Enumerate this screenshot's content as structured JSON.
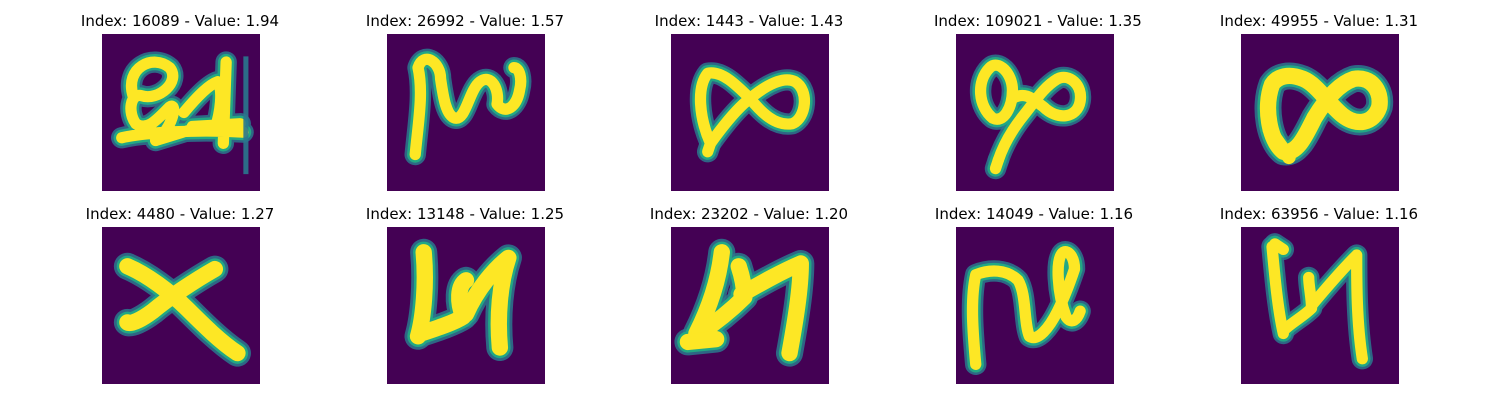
{
  "colors": {
    "background": "#440154",
    "edge": "#22a884",
    "halo": "#2a788e",
    "stroke": "#fde725",
    "figure": "#ffffff",
    "text": "#000000"
  },
  "panels": [
    {
      "index": "16089",
      "value": "1.94",
      "title": "Index: 16089 - Value: 1.94",
      "glyph": "scribble-24"
    },
    {
      "index": "26992",
      "value": "1.57",
      "title": "Index: 26992 - Value: 1.57",
      "glyph": "wave-n"
    },
    {
      "index": "1443",
      "value": "1.43",
      "title": "Index: 1443 - Value: 1.43",
      "glyph": "bowtie-infinity"
    },
    {
      "index": "109021",
      "value": "1.35",
      "title": "Index: 109021 - Value: 1.35",
      "glyph": "loop-infinity-tail"
    },
    {
      "index": "49955",
      "value": "1.31",
      "title": "Index: 49955 - Value: 1.31",
      "glyph": "bold-infinity"
    },
    {
      "index": "4480",
      "value": "1.27",
      "title": "Index: 4480 - Value: 1.27",
      "glyph": "letter-x"
    },
    {
      "index": "13148",
      "value": "1.25",
      "title": "Index: 13148 - Value: 1.25",
      "glyph": "letter-h-variant"
    },
    {
      "index": "23202",
      "value": "1.20",
      "title": "Index: 23202 - Value: 1.20",
      "glyph": "letter-h-slant"
    },
    {
      "index": "14049",
      "value": "1.16",
      "title": "Index: 14049 - Value: 1.16",
      "glyph": "letter-n-loop"
    },
    {
      "index": "63956",
      "value": "1.16",
      "title": "Index: 63956 - Value: 1.16",
      "glyph": "letter-h-thin"
    }
  ]
}
